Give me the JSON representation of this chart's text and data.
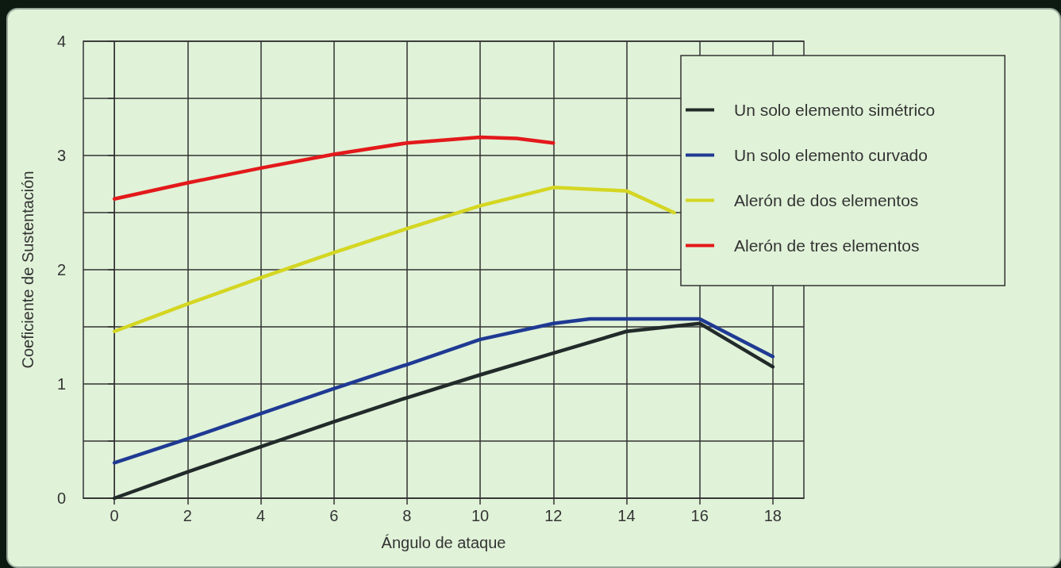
{
  "chart_data": {
    "type": "line",
    "xlabel": "Ángulo de ataque",
    "ylabel": "Coeficiente de Sustentación",
    "xlim": [
      -0.85,
      18.85
    ],
    "xticks": [
      0,
      2,
      4,
      6,
      8,
      10,
      12,
      14,
      16,
      18
    ],
    "ylim": [
      0,
      4
    ],
    "yticks": [
      0,
      {
        "value": 0.5,
        "label": null
      },
      1,
      {
        "value": 1.5,
        "label": null
      },
      2,
      {
        "value": 2.5,
        "label": null
      },
      3,
      {
        "value": 3.5,
        "label": null
      },
      4
    ],
    "grid": true,
    "legend": "top right",
    "marker": "none",
    "line_style": "solid",
    "series": [
      {
        "name": "Un solo elemento simétrico",
        "color": "#222a2a",
        "x": [
          0,
          2,
          4,
          6,
          8,
          10,
          12,
          14,
          16,
          18
        ],
        "values": [
          0,
          0.23,
          0.45,
          0.67,
          0.88,
          1.08,
          1.27,
          1.46,
          1.53,
          1.15
        ]
      },
      {
        "name": "Un solo elemento curvado",
        "color": "#1f3a93",
        "x": [
          0,
          2,
          4,
          6,
          8,
          10,
          12,
          13,
          16,
          18
        ],
        "values": [
          0.31,
          0.52,
          0.74,
          0.96,
          1.17,
          1.39,
          1.53,
          1.57,
          1.57,
          1.24
        ]
      },
      {
        "name": "Alerón de dos elementos",
        "color": "#d4d622",
        "x": [
          0,
          2,
          4,
          6,
          8,
          10,
          12,
          14,
          15.3
        ],
        "values": [
          1.46,
          1.7,
          1.93,
          2.15,
          2.36,
          2.56,
          2.72,
          2.69,
          2.5
        ]
      },
      {
        "name": "Alerón de tres elementos",
        "color": "#e3191b",
        "x": [
          0,
          2,
          4,
          6,
          8,
          10,
          11,
          12
        ],
        "values": [
          2.62,
          2.76,
          2.89,
          3.01,
          3.11,
          3.16,
          3.15,
          3.11
        ]
      }
    ]
  }
}
